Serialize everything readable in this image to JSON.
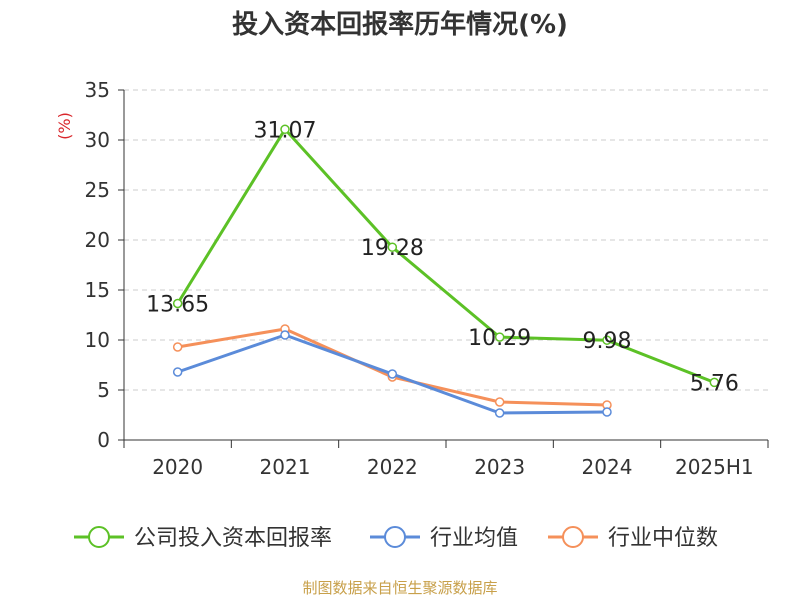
{
  "chart_data": {
    "type": "line",
    "title": "投入资本回报率历年情况(%)",
    "ylabel": "(%)",
    "categories": [
      "2020",
      "2021",
      "2022",
      "2023",
      "2024",
      "2025H1"
    ],
    "ylim": [
      0,
      35
    ],
    "yticks": [
      0,
      5,
      10,
      15,
      20,
      25,
      30,
      35
    ],
    "grid": true,
    "legend_position": "bottom",
    "series": [
      {
        "name": "公司投入资本回报率",
        "color": "#5cc126",
        "values": [
          13.65,
          31.07,
          19.28,
          10.29,
          9.98,
          5.76
        ],
        "labels": [
          "13.65",
          "31.07",
          "19.28",
          "10.29",
          "9.98",
          "5.76"
        ]
      },
      {
        "name": "行业均值",
        "color": "#5b8bd9",
        "values": [
          6.8,
          10.5,
          6.6,
          2.7,
          2.8,
          null
        ]
      },
      {
        "name": "行业中位数",
        "color": "#f5905a",
        "values": [
          9.3,
          11.1,
          6.3,
          3.8,
          3.5,
          null
        ]
      }
    ]
  },
  "source": "制图数据来自恒生聚源数据库"
}
